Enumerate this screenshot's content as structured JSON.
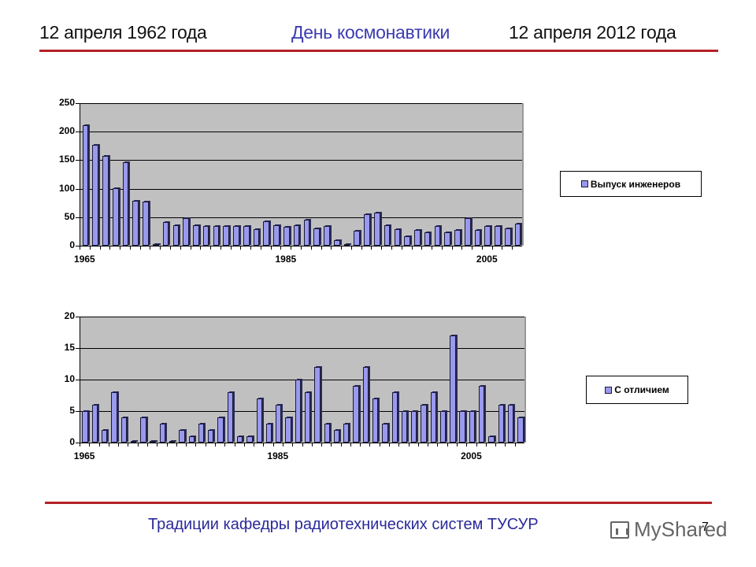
{
  "header": {
    "left": "12 апреля 1962 года",
    "center": "День космонавтики",
    "right": "12 апреля 2012 года"
  },
  "footer": {
    "title": "Традиции кафедры радиотехнических систем ТУСУР",
    "page_number": "7",
    "watermark": "MyShared"
  },
  "colors": {
    "accent_line": "#b52125",
    "center_title": "#3b3bb0",
    "footer_text": "#2a2a9a",
    "bar_fill": "#9999ee",
    "plot_bg": "#c0c0c0"
  },
  "chart_data": [
    {
      "type": "bar",
      "title": "",
      "legend": [
        "Выпуск инженеров"
      ],
      "legend_position": "right",
      "xlabel": "",
      "ylabel": "",
      "ylim": [
        0,
        250
      ],
      "yticks": [
        "0",
        "50",
        "100",
        "150",
        "200",
        "250"
      ],
      "xtick_labels": [
        {
          "label": "1965",
          "index": 0
        },
        {
          "label": "1985",
          "index": 20
        },
        {
          "label": "2005",
          "index": 40
        }
      ],
      "grid": true,
      "categories": [
        1965,
        1966,
        1967,
        1968,
        1969,
        1970,
        1971,
        1972,
        1973,
        1974,
        1975,
        1976,
        1977,
        1978,
        1979,
        1980,
        1981,
        1982,
        1983,
        1984,
        1985,
        1986,
        1987,
        1988,
        1989,
        1990,
        1991,
        1992,
        1993,
        1994,
        1995,
        1996,
        1997,
        1998,
        1999,
        2000,
        2001,
        2002,
        2003,
        2004,
        2005,
        2006,
        2007,
        2008
      ],
      "series": [
        {
          "name": "Выпуск инженеров",
          "values": [
            212,
            177,
            158,
            101,
            147,
            79,
            77,
            1,
            41,
            36,
            48,
            36,
            34,
            34,
            35,
            34,
            34,
            29,
            43,
            36,
            33,
            36,
            45,
            30,
            35,
            9,
            3,
            26,
            55,
            58,
            36,
            29,
            16,
            27,
            24,
            34,
            24,
            27,
            49,
            27,
            34,
            35,
            31,
            38
          ]
        }
      ]
    },
    {
      "type": "bar",
      "title": "",
      "legend": [
        "С отличием"
      ],
      "legend_position": "right",
      "xlabel": "",
      "ylabel": "",
      "ylim": [
        0,
        20
      ],
      "yticks": [
        "0",
        "5",
        "10",
        "15",
        "20"
      ],
      "xtick_labels": [
        {
          "label": "1965",
          "index": 0
        },
        {
          "label": "1985",
          "index": 20
        },
        {
          "label": "2005",
          "index": 40
        }
      ],
      "grid": true,
      "categories": [
        1965,
        1966,
        1967,
        1968,
        1969,
        1970,
        1971,
        1972,
        1973,
        1974,
        1975,
        1976,
        1977,
        1978,
        1979,
        1980,
        1981,
        1982,
        1983,
        1984,
        1985,
        1986,
        1987,
        1988,
        1989,
        1990,
        1991,
        1992,
        1993,
        1994,
        1995,
        1996,
        1997,
        1998,
        1999,
        2000,
        2001,
        2002,
        2003,
        2004,
        2005,
        2006,
        2007,
        2008,
        2009,
        2010
      ],
      "series": [
        {
          "name": "С отличием",
          "values": [
            5,
            6,
            2,
            8,
            4,
            0,
            4,
            0,
            3,
            0,
            2,
            1,
            3,
            2,
            4,
            8,
            1,
            1,
            7,
            3,
            6,
            4,
            10,
            8,
            12,
            3,
            2,
            3,
            9,
            12,
            7,
            3,
            8,
            5,
            5,
            6,
            8,
            5,
            17,
            5,
            5,
            9,
            1,
            6,
            6,
            4
          ]
        }
      ]
    }
  ]
}
